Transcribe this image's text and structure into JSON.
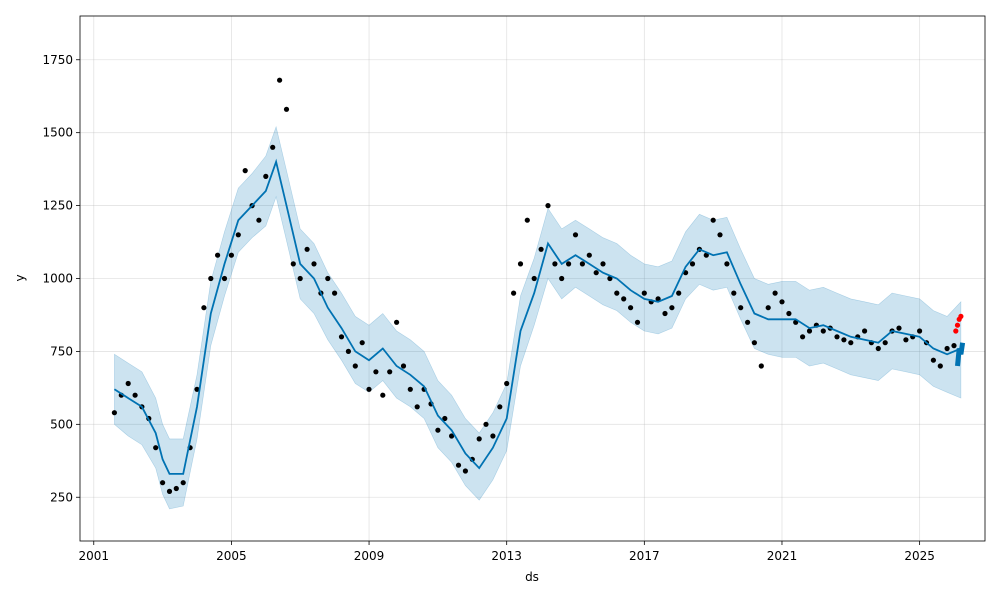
{
  "chart_data": {
    "type": "scatter",
    "title": "",
    "xlabel": "ds",
    "ylabel": "y",
    "xlim": [
      2000.6,
      2026.9
    ],
    "ylim": [
      100,
      1900
    ],
    "x_ticks": [
      2001,
      2005,
      2009,
      2013,
      2017,
      2021,
      2025
    ],
    "x_tick_labels": [
      "2001",
      "2005",
      "2009",
      "2013",
      "2017",
      "2021",
      "2025"
    ],
    "y_ticks": [
      250,
      500,
      750,
      1000,
      1250,
      1500,
      1750
    ],
    "y_tick_labels": [
      "250",
      "500",
      "750",
      "1000",
      "1250",
      "1500",
      "1750"
    ],
    "grid": true,
    "colors": {
      "observed": "#000000",
      "forecast": "#0072B2",
      "interval": "#0072B2",
      "recent_observed": "#ff0000"
    },
    "observed": {
      "x": [
        2001.6,
        2001.8,
        2002.0,
        2002.2,
        2002.4,
        2002.6,
        2002.8,
        2003.0,
        2003.2,
        2003.4,
        2003.6,
        2003.8,
        2004.0,
        2004.2,
        2004.4,
        2004.6,
        2004.8,
        2005.0,
        2005.2,
        2005.4,
        2005.6,
        2005.8,
        2006.0,
        2006.2,
        2006.4,
        2006.6,
        2006.8,
        2007.0,
        2007.2,
        2007.4,
        2007.6,
        2007.8,
        2008.0,
        2008.2,
        2008.4,
        2008.6,
        2008.8,
        2009.0,
        2009.2,
        2009.4,
        2009.6,
        2009.8,
        2010.0,
        2010.2,
        2010.4,
        2010.6,
        2010.8,
        2011.0,
        2011.2,
        2011.4,
        2011.6,
        2011.8,
        2012.0,
        2012.2,
        2012.4,
        2012.6,
        2012.8,
        2013.0,
        2013.2,
        2013.4,
        2013.6,
        2013.8,
        2014.0,
        2014.2,
        2014.4,
        2014.6,
        2014.8,
        2015.0,
        2015.2,
        2015.4,
        2015.6,
        2015.8,
        2016.0,
        2016.2,
        2016.4,
        2016.6,
        2016.8,
        2017.0,
        2017.2,
        2017.4,
        2017.6,
        2017.8,
        2018.0,
        2018.2,
        2018.4,
        2018.6,
        2018.8,
        2019.0,
        2019.2,
        2019.4,
        2019.6,
        2019.8,
        2020.0,
        2020.2,
        2020.4,
        2020.6,
        2020.8,
        2021.0,
        2021.2,
        2021.4,
        2021.6,
        2021.8,
        2022.0,
        2022.2,
        2022.4,
        2022.6,
        2022.8,
        2023.0,
        2023.2,
        2023.4,
        2023.6,
        2023.8,
        2024.0,
        2024.2,
        2024.4,
        2024.6,
        2024.8,
        2025.0,
        2025.2,
        2025.4,
        2025.6,
        2025.8,
        2026.0
      ],
      "y": [
        540,
        600,
        640,
        600,
        560,
        520,
        420,
        300,
        270,
        280,
        300,
        420,
        620,
        900,
        1000,
        1080,
        1000,
        1080,
        1150,
        1370,
        1250,
        1200,
        1350,
        1450,
        1680,
        1580,
        1050,
        1000,
        1100,
        1050,
        950,
        1000,
        950,
        800,
        750,
        700,
        780,
        620,
        680,
        600,
        680,
        850,
        700,
        620,
        560,
        620,
        570,
        480,
        520,
        460,
        360,
        340,
        380,
        450,
        500,
        460,
        560,
        640,
        950,
        1050,
        1200,
        1000,
        1100,
        1250,
        1050,
        1000,
        1050,
        1150,
        1050,
        1080,
        1020,
        1050,
        1000,
        950,
        930,
        900,
        850,
        950,
        920,
        930,
        880,
        900,
        950,
        1020,
        1050,
        1100,
        1080,
        1200,
        1150,
        1050,
        950,
        900,
        850,
        780,
        700,
        900,
        950,
        920,
        880,
        850,
        800,
        820,
        840,
        820,
        830,
        800,
        790,
        780,
        800,
        820,
        780,
        760,
        780,
        820,
        830,
        790,
        800,
        820,
        780,
        720,
        700,
        760,
        770
      ]
    },
    "recent_observed": {
      "x": [
        2026.05,
        2026.1,
        2026.15,
        2026.2
      ],
      "y": [
        820,
        840,
        860,
        870
      ]
    },
    "forecast": {
      "x": [
        2001.6,
        2002.0,
        2002.4,
        2002.8,
        2003.0,
        2003.2,
        2003.6,
        2004.0,
        2004.4,
        2004.8,
        2005.2,
        2005.6,
        2006.0,
        2006.3,
        2006.6,
        2007.0,
        2007.4,
        2007.8,
        2008.2,
        2008.6,
        2009.0,
        2009.4,
        2009.8,
        2010.2,
        2010.6,
        2011.0,
        2011.4,
        2011.8,
        2012.2,
        2012.6,
        2013.0,
        2013.4,
        2013.8,
        2014.2,
        2014.6,
        2015.0,
        2015.4,
        2015.8,
        2016.2,
        2016.6,
        2017.0,
        2017.4,
        2017.8,
        2018.2,
        2018.6,
        2019.0,
        2019.4,
        2019.8,
        2020.2,
        2020.6,
        2021.0,
        2021.4,
        2021.8,
        2022.2,
        2022.6,
        2023.0,
        2023.4,
        2023.8,
        2024.2,
        2024.6,
        2025.0,
        2025.4,
        2025.8,
        2026.2
      ],
      "yhat": [
        620,
        590,
        560,
        470,
        380,
        330,
        330,
        560,
        880,
        1050,
        1200,
        1250,
        1300,
        1400,
        1250,
        1050,
        1000,
        900,
        830,
        750,
        720,
        760,
        700,
        670,
        630,
        530,
        480,
        400,
        350,
        420,
        520,
        820,
        950,
        1120,
        1050,
        1080,
        1050,
        1020,
        1000,
        960,
        930,
        920,
        940,
        1040,
        1100,
        1080,
        1090,
        980,
        880,
        860,
        860,
        860,
        830,
        840,
        820,
        800,
        790,
        780,
        820,
        810,
        800,
        760,
        740,
        760
      ],
      "yhat_lower": [
        500,
        460,
        430,
        350,
        260,
        210,
        220,
        450,
        770,
        940,
        1090,
        1140,
        1180,
        1280,
        1130,
        930,
        880,
        790,
        720,
        640,
        610,
        650,
        590,
        560,
        520,
        420,
        370,
        290,
        240,
        310,
        410,
        700,
        840,
        1000,
        930,
        970,
        940,
        910,
        890,
        850,
        820,
        810,
        830,
        930,
        980,
        960,
        970,
        860,
        760,
        740,
        730,
        730,
        700,
        710,
        690,
        670,
        660,
        650,
        690,
        680,
        670,
        630,
        610,
        590
      ],
      "yhat_upper": [
        740,
        710,
        680,
        590,
        500,
        450,
        450,
        670,
        990,
        1160,
        1310,
        1360,
        1420,
        1520,
        1370,
        1170,
        1120,
        1020,
        950,
        870,
        840,
        880,
        820,
        790,
        750,
        650,
        600,
        520,
        470,
        540,
        640,
        940,
        1070,
        1240,
        1170,
        1200,
        1170,
        1140,
        1120,
        1080,
        1050,
        1040,
        1060,
        1160,
        1220,
        1200,
        1210,
        1100,
        1000,
        980,
        990,
        990,
        960,
        970,
        950,
        930,
        920,
        910,
        950,
        940,
        930,
        890,
        870,
        920
      ]
    },
    "forecast_future": {
      "x": [
        2026.1,
        2026.15,
        2026.2,
        2026.25
      ],
      "yhat": [
        700,
        760,
        740,
        780
      ]
    }
  }
}
